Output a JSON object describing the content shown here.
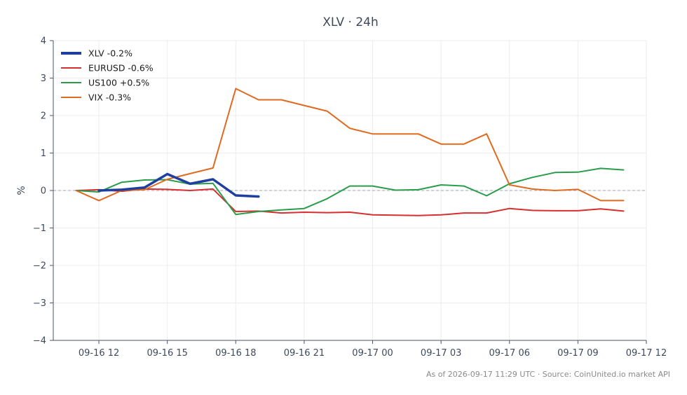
{
  "chart_data": {
    "type": "line",
    "title": "XLV · 24h",
    "xlabel": "",
    "ylabel": "%",
    "ylim": [
      -4,
      4
    ],
    "yticks": [
      -4,
      -3,
      -2,
      -1,
      0,
      1,
      2,
      3,
      4
    ],
    "ytick_labels": [
      "−4",
      "−3",
      "−2",
      "−1",
      "0",
      "1",
      "2",
      "3",
      "4"
    ],
    "xlim": [
      "2026-09-16 10:00",
      "2026-09-17 12:00"
    ],
    "xticks": [
      "2026-09-16 12:00",
      "2026-09-16 15:00",
      "2026-09-16 18:00",
      "2026-09-16 21:00",
      "2026-09-17 00:00",
      "2026-09-17 03:00",
      "2026-09-17 06:00",
      "2026-09-17 09:00",
      "2026-09-17 12:00"
    ],
    "xtick_labels": [
      "09-16 12",
      "09-16 15",
      "09-16 18",
      "09-16 21",
      "09-17 00",
      "09-17 03",
      "09-17 06",
      "09-17 09",
      "09-17 12"
    ],
    "grid": true,
    "zero_line": true,
    "legend_position": "top-left",
    "series": [
      {
        "name": "XLV -0.2%",
        "color": "#1f3fa0",
        "emphasis": true,
        "x": [
          "2026-09-16 12:00",
          "2026-09-16 13:00",
          "2026-09-16 14:00",
          "2026-09-16 15:00",
          "2026-09-16 16:00",
          "2026-09-16 17:00",
          "2026-09-16 18:00",
          "2026-09-16 19:00"
        ],
        "y": [
          0.0,
          0.02,
          0.08,
          0.44,
          0.18,
          0.3,
          -0.13,
          -0.16
        ]
      },
      {
        "name": "EURUSD -0.6%",
        "color": "#d62f2f",
        "x": [
          "2026-09-16 11:00",
          "2026-09-16 12:00",
          "2026-09-16 13:00",
          "2026-09-16 14:00",
          "2026-09-16 15:00",
          "2026-09-16 16:00",
          "2026-09-16 17:00",
          "2026-09-16 18:00",
          "2026-09-16 19:00",
          "2026-09-16 20:00",
          "2026-09-16 21:00",
          "2026-09-16 22:00",
          "2026-09-16 23:00",
          "2026-09-17 00:00",
          "2026-09-17 01:00",
          "2026-09-17 02:00",
          "2026-09-17 03:00",
          "2026-09-17 04:00",
          "2026-09-17 05:00",
          "2026-09-17 06:00",
          "2026-09-17 07:00",
          "2026-09-17 08:00",
          "2026-09-17 09:00",
          "2026-09-17 10:00",
          "2026-09-17 11:00"
        ],
        "y": [
          0.0,
          0.02,
          -0.02,
          0.04,
          0.03,
          0.0,
          0.04,
          -0.56,
          -0.55,
          -0.6,
          -0.58,
          -0.59,
          -0.58,
          -0.65,
          -0.66,
          -0.67,
          -0.65,
          -0.6,
          -0.6,
          -0.48,
          -0.53,
          -0.54,
          -0.54,
          -0.49,
          -0.55
        ]
      },
      {
        "name": "US100 +0.5%",
        "color": "#2a9d4a",
        "x": [
          "2026-09-16 11:00",
          "2026-09-16 12:00",
          "2026-09-16 13:00",
          "2026-09-16 14:00",
          "2026-09-16 15:00",
          "2026-09-16 16:00",
          "2026-09-16 17:00",
          "2026-09-16 18:00",
          "2026-09-16 19:00",
          "2026-09-16 20:00",
          "2026-09-16 21:00",
          "2026-09-16 22:00",
          "2026-09-16 23:00",
          "2026-09-17 00:00",
          "2026-09-17 01:00",
          "2026-09-17 02:00",
          "2026-09-17 03:00",
          "2026-09-17 04:00",
          "2026-09-17 05:00",
          "2026-09-17 06:00",
          "2026-09-17 07:00",
          "2026-09-17 08:00",
          "2026-09-17 09:00",
          "2026-09-17 10:00",
          "2026-09-17 11:00"
        ],
        "y": [
          0.0,
          -0.04,
          0.22,
          0.28,
          0.29,
          0.17,
          0.19,
          -0.64,
          -0.56,
          -0.52,
          -0.48,
          -0.22,
          0.12,
          0.12,
          0.01,
          0.02,
          0.15,
          0.12,
          -0.14,
          0.18,
          0.35,
          0.48,
          0.49,
          0.59,
          0.55
        ]
      },
      {
        "name": "VIX -0.3%",
        "color": "#e06a1f",
        "x": [
          "2026-09-16 11:00",
          "2026-09-16 12:00",
          "2026-09-16 13:00",
          "2026-09-16 14:00",
          "2026-09-16 15:00",
          "2026-09-16 16:00",
          "2026-09-16 17:00",
          "2026-09-16 18:00",
          "2026-09-16 19:00",
          "2026-09-16 20:00",
          "2026-09-16 21:00",
          "2026-09-16 22:00",
          "2026-09-16 23:00",
          "2026-09-17 00:00",
          "2026-09-17 01:00",
          "2026-09-17 02:00",
          "2026-09-17 03:00",
          "2026-09-17 04:00",
          "2026-09-17 05:00",
          "2026-09-17 06:00",
          "2026-09-17 07:00",
          "2026-09-17 08:00",
          "2026-09-17 09:00",
          "2026-09-17 10:00",
          "2026-09-17 11:00"
        ],
        "y": [
          0.0,
          -0.27,
          0.0,
          0.02,
          0.3,
          0.45,
          0.6,
          2.72,
          2.42,
          2.42,
          2.27,
          2.12,
          1.66,
          1.51,
          1.51,
          1.51,
          1.24,
          1.24,
          1.51,
          0.15,
          0.04,
          0.0,
          0.03,
          -0.27,
          -0.27
        ]
      }
    ],
    "footer": "As of 2026-09-17 11:29 UTC · Source: CoinUnited.io market API"
  }
}
